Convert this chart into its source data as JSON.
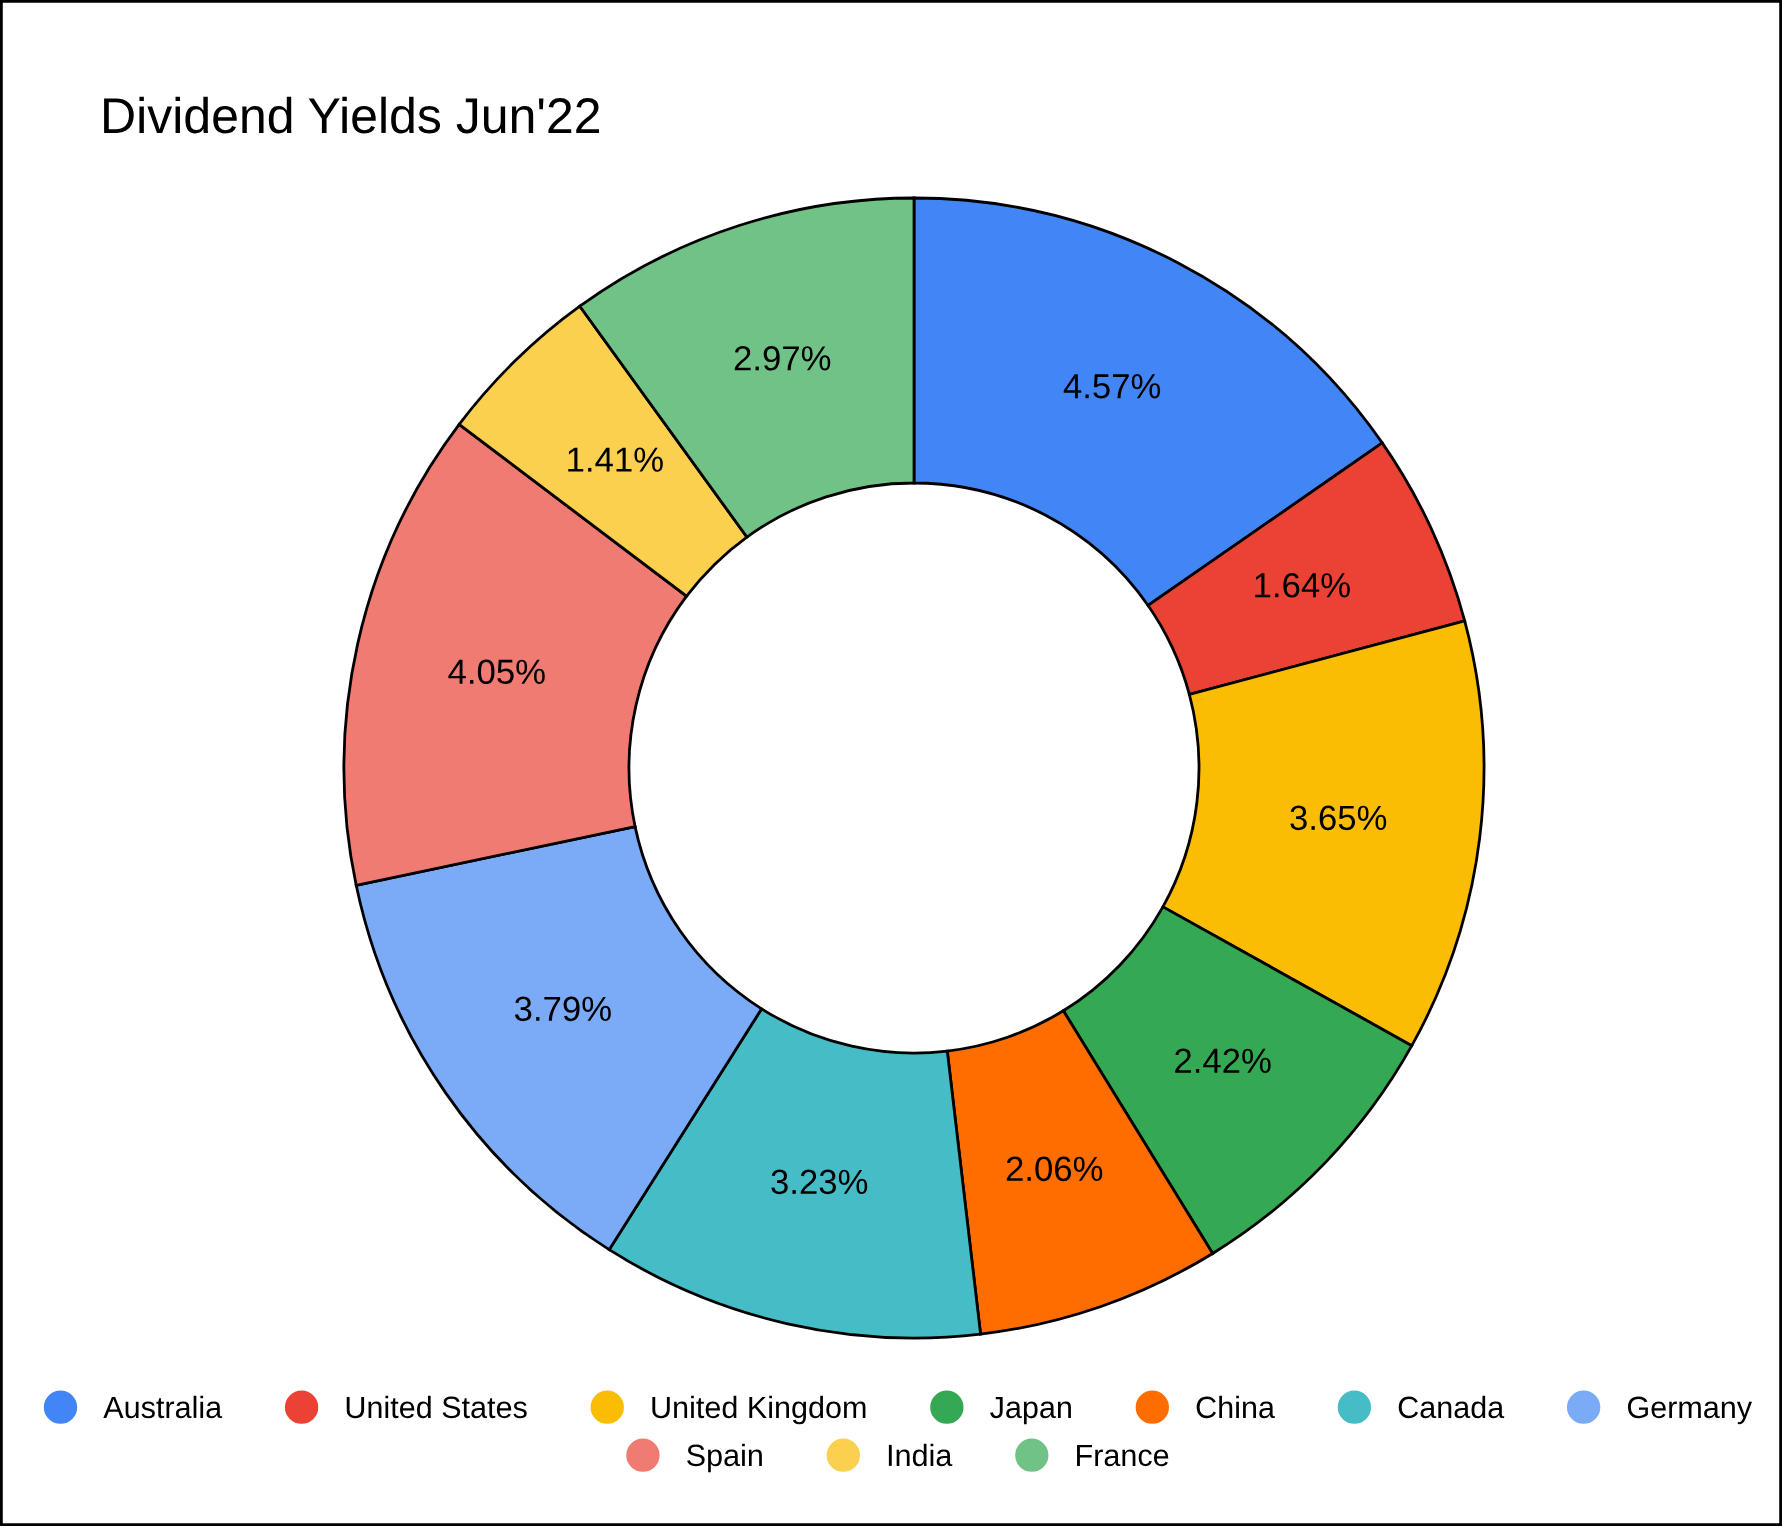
{
  "chart_data": {
    "type": "donut",
    "title": "Dividend Yields Jun'22",
    "categories": [
      "Australia",
      "United States",
      "United Kingdom",
      "Japan",
      "China",
      "Canada",
      "Germany",
      "Spain",
      "India",
      "France"
    ],
    "values": [
      4.57,
      1.64,
      3.65,
      2.42,
      2.06,
      3.23,
      3.79,
      4.05,
      1.41,
      2.97
    ],
    "colors": [
      "#4285f4",
      "#ea4335",
      "#fbbc04",
      "#34a853",
      "#ff6d01",
      "#46bdc6",
      "#7baaf7",
      "#f07b72",
      "#fcd04f",
      "#71c287"
    ],
    "value_labels": [
      "4.57%",
      "1.64%",
      "3.65%",
      "2.42%",
      "2.06%",
      "3.23%",
      "3.79%",
      "4.05%",
      "1.41%",
      "2.97%"
    ],
    "legend": "bottom"
  }
}
